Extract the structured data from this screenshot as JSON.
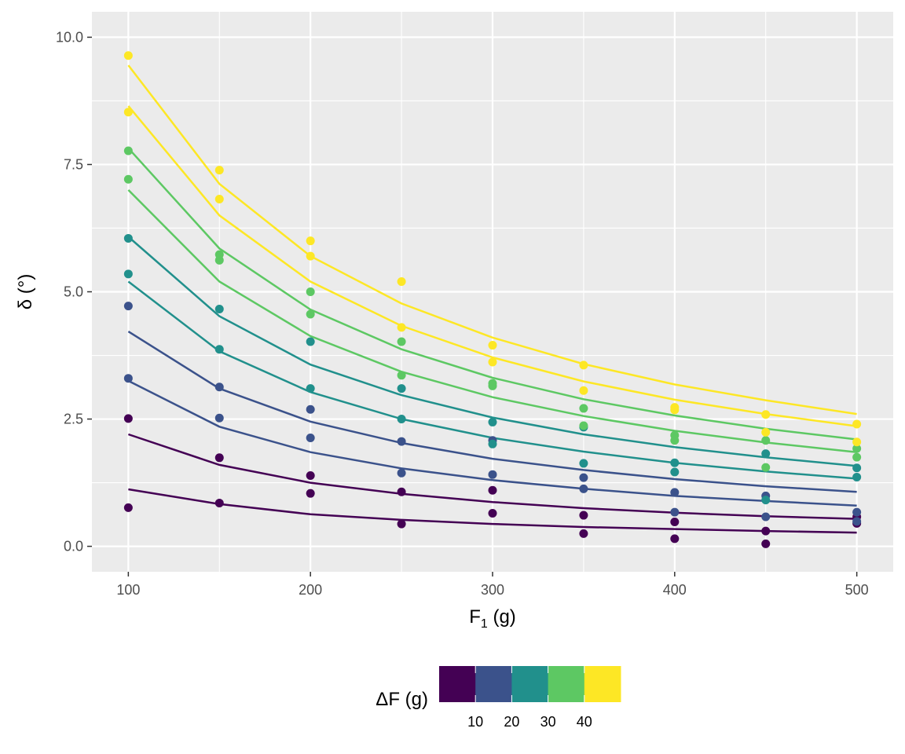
{
  "chart_data": {
    "type": "scatter",
    "xlabel": "F",
    "xlabel_sub": "1",
    "xlabel_unit": " (g)",
    "ylabel": "δ (°)",
    "xlim": [
      80,
      520
    ],
    "ylim": [
      -0.5,
      10.5
    ],
    "x_ticks": [
      100,
      200,
      300,
      400,
      500
    ],
    "y_ticks": [
      0,
      2.5,
      5,
      7.5,
      10
    ],
    "y_tick_labels": [
      "0.0",
      "2.5",
      "5.0",
      "7.5",
      "10.0"
    ],
    "x_minor_ticks": [
      150,
      250,
      350,
      450
    ],
    "y_minor_ticks": [
      1.25,
      3.75,
      6.25,
      8.75
    ],
    "grid": true,
    "legend": {
      "title": "ΔF (g)",
      "placement": "bottom",
      "ticks": [
        "10",
        "20",
        "30",
        "40"
      ],
      "colors": [
        "#440154",
        "#3B528B",
        "#21908C",
        "#5DC863",
        "#FDE725"
      ]
    },
    "colors": {
      "panel": "#EBEBEB",
      "grid": "#FFFFFF"
    },
    "x": [
      100,
      150,
      200,
      250,
      300,
      350,
      400,
      450,
      500
    ],
    "fitted_series": [
      {
        "color": "#440154",
        "values": [
          1.12,
          0.83,
          0.63,
          0.52,
          0.44,
          0.38,
          0.34,
          0.3,
          0.27
        ]
      },
      {
        "color": "#440154",
        "values": [
          2.2,
          1.6,
          1.25,
          1.03,
          0.87,
          0.75,
          0.66,
          0.59,
          0.54
        ]
      },
      {
        "color": "#3B528B",
        "values": [
          3.25,
          2.35,
          1.85,
          1.53,
          1.3,
          1.13,
          0.99,
          0.89,
          0.8
        ]
      },
      {
        "color": "#3B528B",
        "values": [
          4.22,
          3.1,
          2.45,
          2.03,
          1.72,
          1.5,
          1.32,
          1.18,
          1.07
        ]
      },
      {
        "color": "#21908C",
        "values": [
          5.2,
          3.83,
          3.03,
          2.5,
          2.13,
          1.86,
          1.64,
          1.47,
          1.33
        ]
      },
      {
        "color": "#21908C",
        "values": [
          6.08,
          4.52,
          3.57,
          2.97,
          2.53,
          2.2,
          1.95,
          1.75,
          1.58
        ]
      },
      {
        "color": "#5DC863",
        "values": [
          7.0,
          5.2,
          4.13,
          3.43,
          2.93,
          2.56,
          2.27,
          2.04,
          1.85
        ]
      },
      {
        "color": "#5DC863",
        "values": [
          7.82,
          5.85,
          4.65,
          3.87,
          3.31,
          2.89,
          2.57,
          2.31,
          2.1
        ]
      },
      {
        "color": "#FDE725",
        "values": [
          8.65,
          6.5,
          5.2,
          4.33,
          3.71,
          3.24,
          2.88,
          2.6,
          2.36
        ]
      },
      {
        "color": "#FDE725",
        "values": [
          9.45,
          7.12,
          5.7,
          4.77,
          4.1,
          3.58,
          3.18,
          2.87,
          2.6
        ]
      }
    ],
    "points": [
      {
        "x": 100,
        "y": 0.76,
        "color": "#440154"
      },
      {
        "x": 100,
        "y": 2.51,
        "color": "#440154"
      },
      {
        "x": 100,
        "y": 3.3,
        "color": "#3B528B"
      },
      {
        "x": 100,
        "y": 4.72,
        "color": "#3B528B"
      },
      {
        "x": 100,
        "y": 5.35,
        "color": "#21908C"
      },
      {
        "x": 100,
        "y": 6.05,
        "color": "#21908C"
      },
      {
        "x": 100,
        "y": 7.21,
        "color": "#5DC863"
      },
      {
        "x": 100,
        "y": 7.77,
        "color": "#5DC863"
      },
      {
        "x": 100,
        "y": 8.53,
        "color": "#FDE725"
      },
      {
        "x": 100,
        "y": 9.64,
        "color": "#FDE725"
      },
      {
        "x": 150,
        "y": 0.85,
        "color": "#440154"
      },
      {
        "x": 150,
        "y": 1.74,
        "color": "#440154"
      },
      {
        "x": 150,
        "y": 2.52,
        "color": "#3B528B"
      },
      {
        "x": 150,
        "y": 3.13,
        "color": "#3B528B"
      },
      {
        "x": 150,
        "y": 3.87,
        "color": "#21908C"
      },
      {
        "x": 150,
        "y": 4.66,
        "color": "#21908C"
      },
      {
        "x": 150,
        "y": 5.62,
        "color": "#5DC863"
      },
      {
        "x": 150,
        "y": 5.73,
        "color": "#5DC863"
      },
      {
        "x": 150,
        "y": 6.82,
        "color": "#FDE725"
      },
      {
        "x": 150,
        "y": 7.39,
        "color": "#FDE725"
      },
      {
        "x": 200,
        "y": 1.04,
        "color": "#440154"
      },
      {
        "x": 200,
        "y": 1.39,
        "color": "#440154"
      },
      {
        "x": 200,
        "y": 2.13,
        "color": "#3B528B"
      },
      {
        "x": 200,
        "y": 2.69,
        "color": "#3B528B"
      },
      {
        "x": 200,
        "y": 3.1,
        "color": "#21908C"
      },
      {
        "x": 200,
        "y": 4.02,
        "color": "#21908C"
      },
      {
        "x": 200,
        "y": 4.56,
        "color": "#5DC863"
      },
      {
        "x": 200,
        "y": 5.0,
        "color": "#5DC863"
      },
      {
        "x": 200,
        "y": 5.7,
        "color": "#FDE725"
      },
      {
        "x": 200,
        "y": 6.0,
        "color": "#FDE725"
      },
      {
        "x": 250,
        "y": 0.44,
        "color": "#440154"
      },
      {
        "x": 250,
        "y": 1.07,
        "color": "#440154"
      },
      {
        "x": 250,
        "y": 1.44,
        "color": "#3B528B"
      },
      {
        "x": 250,
        "y": 2.06,
        "color": "#3B528B"
      },
      {
        "x": 250,
        "y": 2.5,
        "color": "#21908C"
      },
      {
        "x": 250,
        "y": 3.1,
        "color": "#21908C"
      },
      {
        "x": 250,
        "y": 3.36,
        "color": "#5DC863"
      },
      {
        "x": 250,
        "y": 4.02,
        "color": "#5DC863"
      },
      {
        "x": 250,
        "y": 4.3,
        "color": "#FDE725"
      },
      {
        "x": 250,
        "y": 5.2,
        "color": "#FDE725"
      },
      {
        "x": 300,
        "y": 0.65,
        "color": "#440154"
      },
      {
        "x": 300,
        "y": 1.1,
        "color": "#440154"
      },
      {
        "x": 300,
        "y": 1.41,
        "color": "#3B528B"
      },
      {
        "x": 300,
        "y": 2.08,
        "color": "#3B528B"
      },
      {
        "x": 300,
        "y": 2.01,
        "color": "#21908C"
      },
      {
        "x": 300,
        "y": 2.44,
        "color": "#21908C"
      },
      {
        "x": 300,
        "y": 3.15,
        "color": "#5DC863"
      },
      {
        "x": 300,
        "y": 3.2,
        "color": "#5DC863"
      },
      {
        "x": 300,
        "y": 3.62,
        "color": "#FDE725"
      },
      {
        "x": 300,
        "y": 3.95,
        "color": "#FDE725"
      },
      {
        "x": 350,
        "y": 0.25,
        "color": "#440154"
      },
      {
        "x": 350,
        "y": 0.61,
        "color": "#440154"
      },
      {
        "x": 350,
        "y": 1.13,
        "color": "#3B528B"
      },
      {
        "x": 350,
        "y": 1.35,
        "color": "#3B528B"
      },
      {
        "x": 350,
        "y": 1.63,
        "color": "#21908C"
      },
      {
        "x": 350,
        "y": 2.34,
        "color": "#21908C"
      },
      {
        "x": 350,
        "y": 2.37,
        "color": "#5DC863"
      },
      {
        "x": 350,
        "y": 2.71,
        "color": "#5DC863"
      },
      {
        "x": 350,
        "y": 3.06,
        "color": "#FDE725"
      },
      {
        "x": 350,
        "y": 3.56,
        "color": "#FDE725"
      },
      {
        "x": 400,
        "y": 0.15,
        "color": "#440154"
      },
      {
        "x": 400,
        "y": 0.48,
        "color": "#440154"
      },
      {
        "x": 400,
        "y": 0.67,
        "color": "#3B528B"
      },
      {
        "x": 400,
        "y": 1.06,
        "color": "#3B528B"
      },
      {
        "x": 400,
        "y": 1.46,
        "color": "#21908C"
      },
      {
        "x": 400,
        "y": 1.64,
        "color": "#21908C"
      },
      {
        "x": 400,
        "y": 2.08,
        "color": "#5DC863"
      },
      {
        "x": 400,
        "y": 2.18,
        "color": "#5DC863"
      },
      {
        "x": 400,
        "y": 2.68,
        "color": "#FDE725"
      },
      {
        "x": 400,
        "y": 2.73,
        "color": "#FDE725"
      },
      {
        "x": 450,
        "y": 0.05,
        "color": "#440154"
      },
      {
        "x": 450,
        "y": 0.3,
        "color": "#440154"
      },
      {
        "x": 450,
        "y": 0.58,
        "color": "#3B528B"
      },
      {
        "x": 450,
        "y": 0.99,
        "color": "#3B528B"
      },
      {
        "x": 450,
        "y": 0.91,
        "color": "#21908C"
      },
      {
        "x": 450,
        "y": 1.82,
        "color": "#21908C"
      },
      {
        "x": 450,
        "y": 1.55,
        "color": "#5DC863"
      },
      {
        "x": 450,
        "y": 2.08,
        "color": "#5DC863"
      },
      {
        "x": 450,
        "y": 2.24,
        "color": "#FDE725"
      },
      {
        "x": 450,
        "y": 2.59,
        "color": "#FDE725"
      },
      {
        "x": 500,
        "y": 0.45,
        "color": "#440154"
      },
      {
        "x": 500,
        "y": 0.58,
        "color": "#440154"
      },
      {
        "x": 500,
        "y": 0.49,
        "color": "#3B528B"
      },
      {
        "x": 500,
        "y": 0.67,
        "color": "#3B528B"
      },
      {
        "x": 500,
        "y": 1.36,
        "color": "#21908C"
      },
      {
        "x": 500,
        "y": 1.54,
        "color": "#21908C"
      },
      {
        "x": 500,
        "y": 1.75,
        "color": "#5DC863"
      },
      {
        "x": 500,
        "y": 1.92,
        "color": "#5DC863"
      },
      {
        "x": 500,
        "y": 2.05,
        "color": "#FDE725"
      },
      {
        "x": 500,
        "y": 2.4,
        "color": "#FDE725"
      }
    ]
  }
}
